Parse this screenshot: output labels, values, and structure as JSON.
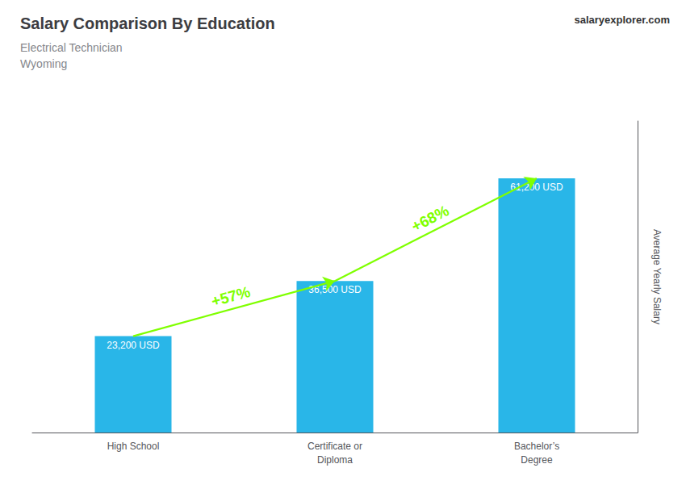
{
  "chart_data": {
    "type": "bar",
    "title": "Salary Comparison By Education",
    "subtitle": [
      "Electrical Technician",
      "Wyoming"
    ],
    "y_label": "Average Yearly Salary",
    "categories": [
      "High School",
      "Certificate or\nDiploma",
      "Bachelor’s\nDegree"
    ],
    "values": [
      23200,
      36500,
      61200
    ],
    "value_labels": [
      "23,200 USD",
      "36,500 USD",
      "61,200 USD"
    ],
    "data_labels": true,
    "color": "#29b6e8",
    "ylim": [
      0,
      75000
    ],
    "grid": false,
    "tick_labels": "x",
    "annotations": [
      {
        "text": "+57%",
        "from": "High School",
        "to": "Certificate or\nDiploma",
        "color": "#7fff00"
      },
      {
        "text": "+68%",
        "from": "Certificate or\nDiploma",
        "to": "Bachelor’s\nDegree",
        "color": "#7fff00"
      },
      {
        "text": "salaryexplorer.com"
      }
    ]
  }
}
